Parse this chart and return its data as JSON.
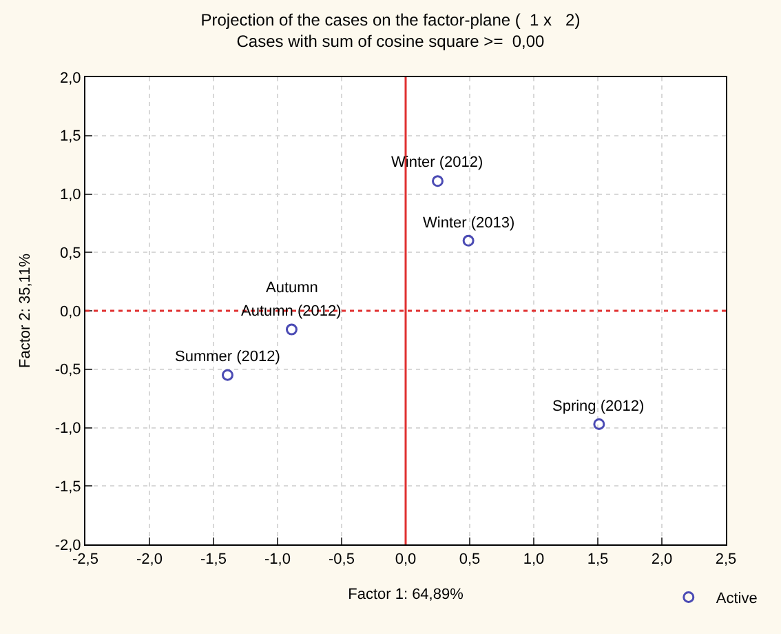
{
  "chart_data": {
    "type": "scatter",
    "title": "Projection of the cases on the factor-plane (  1 x   2)",
    "subtitle": "Cases with sum of cosine square >=  0,00",
    "xlabel": "Factor 1: 64,89%",
    "ylabel": "Factor 2: 35,11%",
    "series": [
      {
        "name": "Active",
        "color": "#4b4bb4",
        "x": [
          0.25,
          0.49,
          -0.89,
          -1.39,
          1.51
        ],
        "values": [
          1.11,
          0.6,
          -0.16,
          -0.55,
          -0.97
        ]
      }
    ],
    "annotations": [
      {
        "text": "Winter (2012)",
        "x": 0.25,
        "y": 1.11
      },
      {
        "text": "Winter (2013)",
        "x": 0.49,
        "y": 0.6
      },
      {
        "text": "Autumn (2012)",
        "x": -0.89,
        "y": -0.16
      },
      {
        "text": "Autumn",
        "x": -0.89,
        "y": -0.16
      },
      {
        "text": "Summer (2012)",
        "x": -1.39,
        "y": -0.55
      },
      {
        "text": "Spring (2012)",
        "x": 1.51,
        "y": -0.97
      }
    ],
    "ref_lines": [
      {
        "axis": "y",
        "value": 0,
        "color": "#e03030",
        "line_style": "dotted"
      },
      {
        "axis": "x",
        "value": 0,
        "color": "#e03030",
        "line_style": "solid"
      }
    ],
    "xlim": [
      -2.5,
      2.5
    ],
    "ylim": [
      -2.0,
      2.0
    ],
    "xticks": [
      {
        "value": -2.5,
        "label": "-2,5"
      },
      {
        "value": -2.0,
        "label": "-2,0"
      },
      {
        "value": -1.5,
        "label": "-1,5"
      },
      {
        "value": -1.0,
        "label": "-1,0"
      },
      {
        "value": -0.5,
        "label": "-0,5"
      },
      {
        "value": 0,
        "label": "0,0"
      },
      {
        "value": 0.5,
        "label": "0,5"
      },
      {
        "value": 1.0,
        "label": "1,0"
      },
      {
        "value": 1.5,
        "label": "1,5"
      },
      {
        "value": 2.0,
        "label": "2,0"
      },
      {
        "value": 2.5,
        "label": "2,5"
      }
    ],
    "yticks": [
      {
        "value": -2.0,
        "label": "-2,0"
      },
      {
        "value": -1.5,
        "label": "-1,5"
      },
      {
        "value": -1.0,
        "label": "-1,0"
      },
      {
        "value": -0.5,
        "label": "-0,5"
      },
      {
        "value": 0,
        "label": "0,0"
      },
      {
        "value": 0.5,
        "label": "0,5"
      },
      {
        "value": 1.0,
        "label": "1,0"
      },
      {
        "value": 1.5,
        "label": "1,5"
      },
      {
        "value": 2.0,
        "label": "2,0"
      }
    ],
    "grid": true,
    "legend": "bottom right",
    "marker": "circle"
  }
}
